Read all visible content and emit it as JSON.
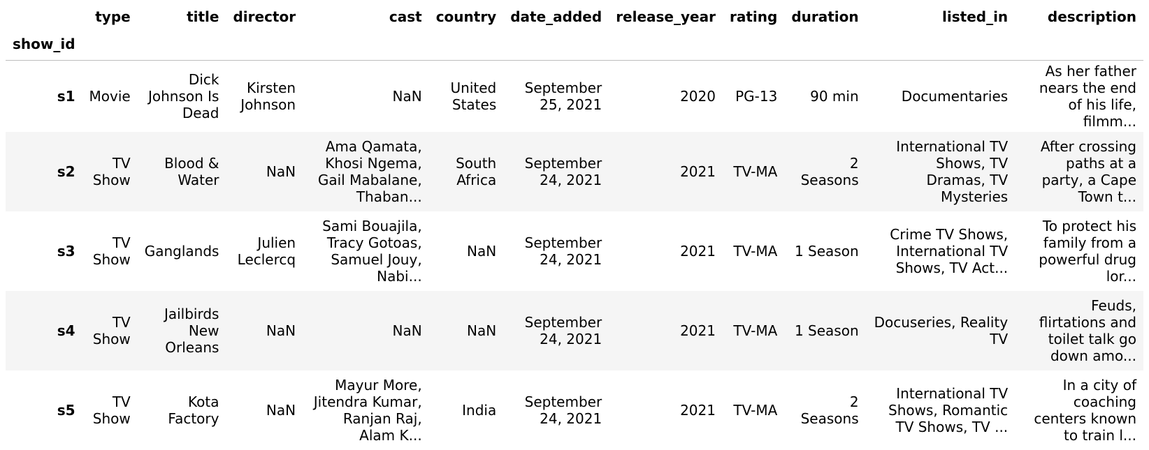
{
  "table": {
    "index_name": "show_id",
    "columns": [
      "type",
      "title",
      "director",
      "cast",
      "country",
      "date_added",
      "release_year",
      "rating",
      "duration",
      "listed_in",
      "description"
    ],
    "rows": [
      {
        "show_id": "s1",
        "type": "Movie",
        "title": "Dick Johnson Is Dead",
        "director": "Kirsten Johnson",
        "cast": "NaN",
        "country": "United States",
        "date_added": "September 25, 2021",
        "release_year": "2020",
        "rating": "PG-13",
        "duration": "90 min",
        "listed_in": "Documentaries",
        "description": "As her father nears the end of his life, filmm..."
      },
      {
        "show_id": "s2",
        "type": "TV Show",
        "title": "Blood & Water",
        "director": "NaN",
        "cast": "Ama Qamata, Khosi Ngema, Gail Mabalane, Thaban...",
        "country": "South Africa",
        "date_added": "September 24, 2021",
        "release_year": "2021",
        "rating": "TV-MA",
        "duration": "2 Seasons",
        "listed_in": "International TV Shows, TV Dramas, TV Mysteries",
        "description": "After crossing paths at a party, a Cape Town t..."
      },
      {
        "show_id": "s3",
        "type": "TV Show",
        "title": "Ganglands",
        "director": "Julien Leclercq",
        "cast": "Sami Bouajila, Tracy Gotoas, Samuel Jouy, Nabi...",
        "country": "NaN",
        "date_added": "September 24, 2021",
        "release_year": "2021",
        "rating": "TV-MA",
        "duration": "1 Season",
        "listed_in": "Crime TV Shows, International TV Shows, TV Act...",
        "description": "To protect his family from a powerful drug lor..."
      },
      {
        "show_id": "s4",
        "type": "TV Show",
        "title": "Jailbirds New Orleans",
        "director": "NaN",
        "cast": "NaN",
        "country": "NaN",
        "date_added": "September 24, 2021",
        "release_year": "2021",
        "rating": "TV-MA",
        "duration": "1 Season",
        "listed_in": "Docuseries, Reality TV",
        "description": "Feuds, flirtations and toilet talk go down amo..."
      },
      {
        "show_id": "s5",
        "type": "TV Show",
        "title": "Kota Factory",
        "director": "NaN",
        "cast": "Mayur More, Jitendra Kumar, Ranjan Raj, Alam K...",
        "country": "India",
        "date_added": "September 24, 2021",
        "release_year": "2021",
        "rating": "TV-MA",
        "duration": "2 Seasons",
        "listed_in": "International TV Shows, Romantic TV Shows, TV ...",
        "description": "In a city of coaching centers known to train l..."
      }
    ]
  }
}
